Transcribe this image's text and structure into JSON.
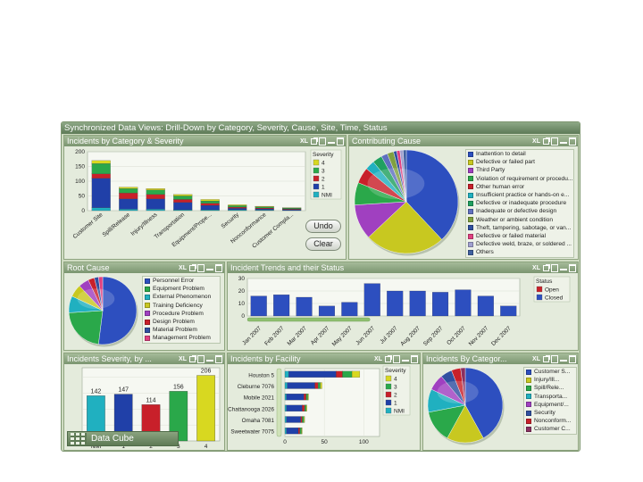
{
  "dashboard": {
    "title": "Synchronized Data Views: Drill-Down by Category, Severity, Cause, Site, Time, Status"
  },
  "header_icons": {
    "xl": "XL"
  },
  "panels": {
    "category_severity": {
      "title": "Incidents by Category & Severity"
    },
    "contributing_cause": {
      "title": "Contributing Cause"
    },
    "root_cause": {
      "title": "Root Cause"
    },
    "trends": {
      "title": "Incident Trends and their Status"
    },
    "severity": {
      "title": "Incidents Severity, by ..."
    },
    "facility": {
      "title": "Incidents by Facility"
    },
    "by_category": {
      "title": "Incidents By Categor..."
    }
  },
  "buttons": {
    "undo": "Undo",
    "clear": "Clear"
  },
  "data_cube": {
    "label": "Data Cube"
  },
  "colors": {
    "sev4": "#d8d820",
    "sev3": "#2aa84a",
    "sev2": "#c8202a",
    "sev1": "#2040a8",
    "nmi": "#20b0c0",
    "open": "#c8202a",
    "closed": "#2d4fbf"
  },
  "chart_data": [
    {
      "id": "category_severity",
      "type": "bar",
      "stacked": true,
      "categories": [
        "Customer Site",
        "Spill/Release",
        "Injury/Illness",
        "Transportation",
        "Equipment/Prope...",
        "Security",
        "Nonconformance",
        "Customer Compla..."
      ],
      "series": [
        {
          "name": "4",
          "values": [
            10,
            5,
            5,
            5,
            5,
            3,
            2,
            1
          ]
        },
        {
          "name": "3",
          "values": [
            35,
            15,
            15,
            12,
            8,
            5,
            4,
            3
          ]
        },
        {
          "name": "2",
          "values": [
            15,
            20,
            15,
            10,
            7,
            4,
            3,
            2
          ]
        },
        {
          "name": "1",
          "values": [
            100,
            35,
            35,
            25,
            15,
            5,
            4,
            3
          ]
        },
        {
          "name": "NMI",
          "values": [
            10,
            5,
            5,
            3,
            3,
            3,
            2,
            1
          ]
        }
      ],
      "ylim": [
        0,
        200
      ],
      "yticks": [
        0,
        50,
        100,
        150,
        200
      ],
      "legend_title": "Severity",
      "legend": "right",
      "grid": true
    },
    {
      "id": "contributing_cause",
      "type": "pie",
      "labels": [
        "Inattention to detail",
        "Defective or failed part",
        "Third Party",
        "Violation of requirement or procedu...",
        "Other human error",
        "Insufficient practice or hands-on e...",
        "Defective or inadequate procedure",
        "Inadequate or defective design",
        "Weather or ambient condition",
        "Theft, tampering, sabotage, or van...",
        "Defective or failed material",
        "Defective weld, braze, or soldered ...",
        "Others"
      ],
      "values": [
        38,
        25,
        11,
        7,
        5,
        3,
        3,
        2,
        2,
        1,
        1,
        1,
        1
      ],
      "colors": [
        "#2d4fbf",
        "#c8c820",
        "#a040c0",
        "#2aa84a",
        "#c8202a",
        "#20b0c0",
        "#20a060",
        "#6070c0",
        "#80a040",
        "#3050a0",
        "#e04080",
        "#a0a0d0",
        "#4060a0"
      ],
      "legend": "right"
    },
    {
      "id": "root_cause",
      "type": "pie",
      "labels": [
        "Personnel Error",
        "Equipment Problem",
        "External Phenomenon",
        "Training Deficiency",
        "Procedure Problem",
        "Design Problem",
        "Material Problem",
        "Management Problem"
      ],
      "values": [
        52,
        22,
        8,
        6,
        5,
        3,
        2,
        2
      ],
      "colors": [
        "#2d4fbf",
        "#2aa84a",
        "#20b0c0",
        "#c8c820",
        "#a040c0",
        "#c8202a",
        "#3050a0",
        "#e04080"
      ],
      "legend": "right"
    },
    {
      "id": "trends",
      "type": "bar",
      "stacked": true,
      "categories": [
        "Jan 2007",
        "Feb 2007",
        "Mar 2007",
        "Apr 2007",
        "May 2007",
        "Jun 2007",
        "Jul 2007",
        "Aug 2007",
        "Sep 2007",
        "Oct 2007",
        "Nov 2007",
        "Dec 2007"
      ],
      "series": [
        {
          "name": "Closed",
          "values": [
            16,
            17,
            15,
            8,
            11,
            26,
            20,
            20,
            19,
            21,
            16,
            8
          ]
        },
        {
          "name": "Open",
          "values": [
            0,
            0,
            0,
            0,
            0,
            0,
            0,
            0,
            0,
            0,
            0,
            0
          ]
        }
      ],
      "ylim": [
        0,
        30
      ],
      "yticks": [
        0,
        10,
        20,
        30
      ],
      "legend_title": "Status",
      "legend": "right",
      "grid": true
    },
    {
      "id": "severity",
      "type": "bar",
      "categories": [
        "NMI",
        "1",
        "2",
        "3",
        "4"
      ],
      "values": [
        142,
        147,
        114,
        156,
        206
      ],
      "data_labels": [
        "142",
        "147",
        "114",
        "156",
        "206"
      ],
      "colors": [
        "#20b0c0",
        "#2040a8",
        "#c8202a",
        "#2aa84a",
        "#d8d820"
      ],
      "ylim": [
        0,
        230
      ],
      "grid": true
    },
    {
      "id": "facility",
      "type": "bar",
      "orientation": "horizontal",
      "stacked": true,
      "categories": [
        "Houston 5",
        "Cleburne 7076",
        "Mobile 2021",
        "Chattanooga 2026",
        "Omaha 7081",
        "Sweetwater 7075"
      ],
      "series": [
        {
          "name": "4",
          "values": [
            10,
            2,
            1,
            1,
            1,
            1
          ]
        },
        {
          "name": "3",
          "values": [
            12,
            3,
            2,
            2,
            2,
            2
          ]
        },
        {
          "name": "2",
          "values": [
            8,
            4,
            3,
            3,
            2,
            2
          ]
        },
        {
          "name": "1",
          "values": [
            60,
            35,
            22,
            20,
            18,
            15
          ]
        },
        {
          "name": "NMI",
          "values": [
            5,
            3,
            2,
            2,
            2,
            2
          ]
        }
      ],
      "xlim": [
        0,
        120
      ],
      "xticks": [
        0,
        50,
        100
      ],
      "legend_title": "Severity",
      "legend": "right",
      "grid": true
    },
    {
      "id": "by_category",
      "type": "pie",
      "labels": [
        "Customer S...",
        "Injury/Ill...",
        "Spill/Rele...",
        "Transporta...",
        "Equipment/...",
        "Security",
        "Nonconform...",
        "Customer C..."
      ],
      "values": [
        42,
        16,
        14,
        10,
        7,
        5,
        4,
        2
      ],
      "colors": [
        "#2d4fbf",
        "#c8c820",
        "#2aa84a",
        "#20b0c0",
        "#a040c0",
        "#3050a0",
        "#c8202a",
        "#8a3060"
      ],
      "legend": "right"
    }
  ]
}
